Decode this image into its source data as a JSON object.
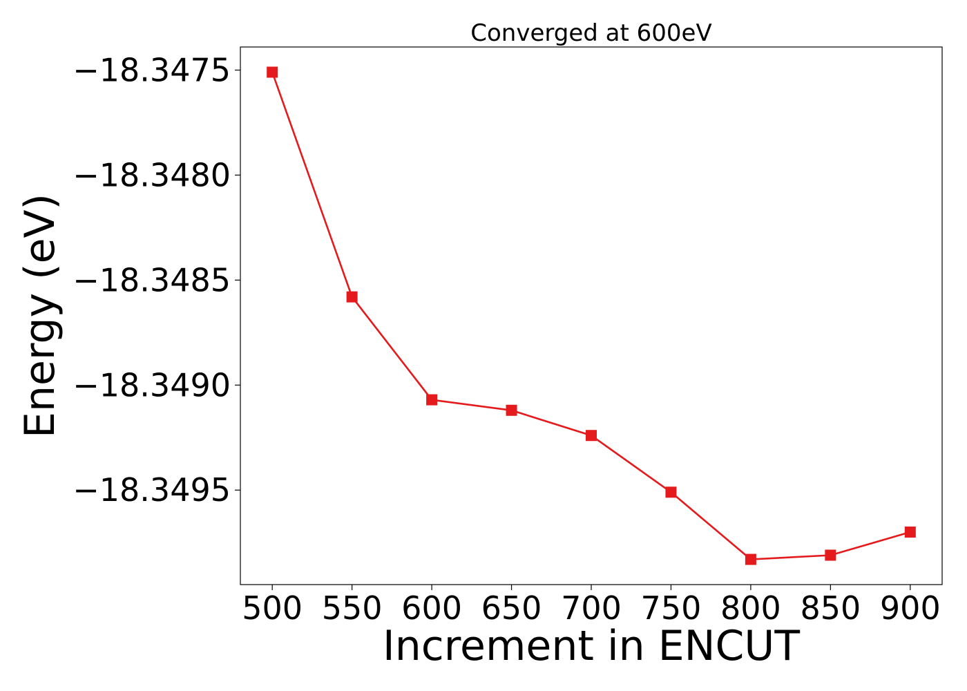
{
  "chart_data": {
    "type": "line",
    "title": "Converged at 600eV",
    "xlabel": "Increment in ENCUT",
    "ylabel": "Energy (eV)",
    "x": [
      500,
      550,
      600,
      650,
      700,
      750,
      800,
      850,
      900
    ],
    "series": [
      {
        "values": [
          -18.34751,
          -18.34858,
          -18.34907,
          -18.34912,
          -18.34924,
          -18.34951,
          -18.34983,
          -18.34981,
          -18.3497
        ],
        "color": "#e41a1c",
        "marker": "square"
      }
    ],
    "xticks": [
      500,
      550,
      600,
      650,
      700,
      750,
      800,
      850,
      900
    ],
    "xtick_labels": [
      "500",
      "550",
      "600",
      "650",
      "700",
      "750",
      "800",
      "850",
      "900"
    ],
    "yticks": [
      -18.3475,
      -18.348,
      -18.3485,
      -18.349,
      -18.3495
    ],
    "ytick_labels": [
      "−18.3475",
      "−18.3480",
      "−18.3485",
      "−18.3490",
      "−18.3495"
    ],
    "xlim": [
      480,
      920
    ],
    "ylim": [
      -18.34995,
      -18.34739
    ],
    "grid": false,
    "legend": "none"
  }
}
